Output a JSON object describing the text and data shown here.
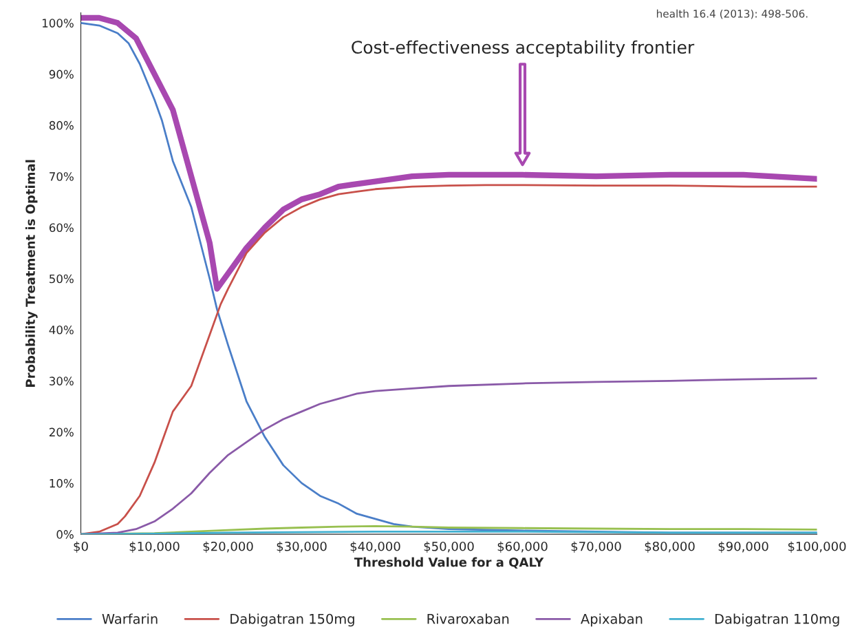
{
  "chart_data": {
    "type": "line",
    "xlabel": "Threshold Value for a QALY",
    "ylabel": "Probability Treatment is Optimal",
    "xlim": [
      0,
      100000
    ],
    "ylim": [
      0,
      102
    ],
    "xticks": [
      {
        "value": 0,
        "label": "$0"
      },
      {
        "value": 10000,
        "label": "$10,000"
      },
      {
        "value": 20000,
        "label": "$20,000"
      },
      {
        "value": 30000,
        "label": "$30,000"
      },
      {
        "value": 40000,
        "label": "$40,000"
      },
      {
        "value": 50000,
        "label": "$50,000"
      },
      {
        "value": 60000,
        "label": "$60,000"
      },
      {
        "value": 70000,
        "label": "$70,000"
      },
      {
        "value": 80000,
        "label": "$80,000"
      },
      {
        "value": 90000,
        "label": "$90,000"
      },
      {
        "value": 100000,
        "label": "$100,000"
      }
    ],
    "yticks": [
      {
        "value": 0,
        "label": "0%"
      },
      {
        "value": 10,
        "label": "10%"
      },
      {
        "value": 20,
        "label": "20%"
      },
      {
        "value": 30,
        "label": "30%"
      },
      {
        "value": 40,
        "label": "40%"
      },
      {
        "value": 50,
        "label": "50%"
      },
      {
        "value": 60,
        "label": "60%"
      },
      {
        "value": 70,
        "label": "70%"
      },
      {
        "value": 80,
        "label": "80%"
      },
      {
        "value": 90,
        "label": "90%"
      },
      {
        "value": 100,
        "label": "100%"
      }
    ],
    "grid": false,
    "legend": "bottom",
    "marker": "none",
    "line_style": "solid",
    "annotations": [
      "Cost-effectiveness acceptability frontier",
      "health 16.4 (2013): 498-506."
    ],
    "series": [
      {
        "color": "#a848b0",
        "x": [
          0,
          2500,
          5000,
          7500,
          10000,
          12500,
          15000,
          17500,
          18500,
          20000,
          22500,
          25000,
          27500,
          30000,
          32500,
          35000,
          40000,
          45000,
          50000,
          60000,
          70000,
          80000,
          90000,
          100000
        ],
        "values": [
          101,
          101,
          100,
          97,
          90,
          83,
          70,
          57,
          48,
          51,
          56,
          60,
          63.5,
          65.5,
          66.5,
          68,
          69,
          70,
          70.3,
          70.3,
          70,
          70.3,
          70.3,
          69.5
        ]
      },
      {
        "name": "Warfarin",
        "color": "#4a7ec8",
        "x": [
          0,
          2500,
          5000,
          6500,
          8000,
          10000,
          11000,
          12500,
          15000,
          17500,
          18500,
          20000,
          22500,
          25000,
          27500,
          30000,
          32500,
          35000,
          37500,
          40000,
          42500,
          45000,
          50000,
          60000,
          70000,
          80000,
          90000,
          100000
        ],
        "values": [
          100,
          99.5,
          98,
          96,
          92,
          85,
          81,
          73,
          64,
          50,
          44,
          37,
          26,
          19,
          13.5,
          10,
          7.5,
          6,
          4,
          3,
          2,
          1.5,
          1,
          0.7,
          0.5,
          0.3,
          0.3,
          0.3
        ]
      },
      {
        "name": "Dabigatran 150mg",
        "color": "#c8504a",
        "x": [
          0,
          2500,
          5000,
          6000,
          8000,
          10000,
          11000,
          12500,
          15000,
          17500,
          19000,
          20000,
          22500,
          25000,
          27500,
          30000,
          32500,
          35000,
          37500,
          40000,
          45000,
          50000,
          55000,
          60000,
          70000,
          80000,
          90000,
          100000
        ],
        "values": [
          0,
          0.5,
          2,
          3.5,
          7.5,
          14,
          18,
          24,
          29,
          39,
          45,
          48,
          55,
          59,
          62,
          64,
          65.5,
          66.5,
          67,
          67.5,
          68,
          68.2,
          68.3,
          68.3,
          68.2,
          68.2,
          68,
          68
        ]
      },
      {
        "name": "Rivaroxaban",
        "color": "#98c050",
        "x": [
          0,
          10000,
          15000,
          20000,
          25000,
          30000,
          35000,
          40000,
          45000,
          50000,
          60000,
          70000,
          80000,
          90000,
          100000
        ],
        "values": [
          0,
          0.2,
          0.5,
          0.8,
          1.1,
          1.3,
          1.5,
          1.6,
          1.5,
          1.3,
          1.2,
          1.1,
          1,
          1,
          0.9
        ]
      },
      {
        "name": "Apixaban",
        "color": "#8a5aa8",
        "x": [
          0,
          5000,
          7500,
          10000,
          12500,
          15000,
          17500,
          20000,
          22500,
          25000,
          27500,
          30000,
          32500,
          35000,
          37500,
          40000,
          45000,
          50000,
          60000,
          70000,
          80000,
          90000,
          100000
        ],
        "values": [
          0,
          0.3,
          1,
          2.5,
          5,
          8,
          12,
          15.5,
          18,
          20.5,
          22.5,
          24,
          25.5,
          26.5,
          27.5,
          28,
          28.5,
          29,
          29.5,
          29.8,
          30,
          30.3,
          30.5
        ]
      },
      {
        "name": "Dabigatran 110mg",
        "color": "#40b0d0",
        "x": [
          0,
          10000,
          20000,
          30000,
          40000,
          50000,
          60000,
          70000,
          80000,
          100000
        ],
        "values": [
          0,
          0.1,
          0.3,
          0.4,
          0.5,
          0.5,
          0.5,
          0.4,
          0.3,
          0.3
        ]
      }
    ]
  }
}
